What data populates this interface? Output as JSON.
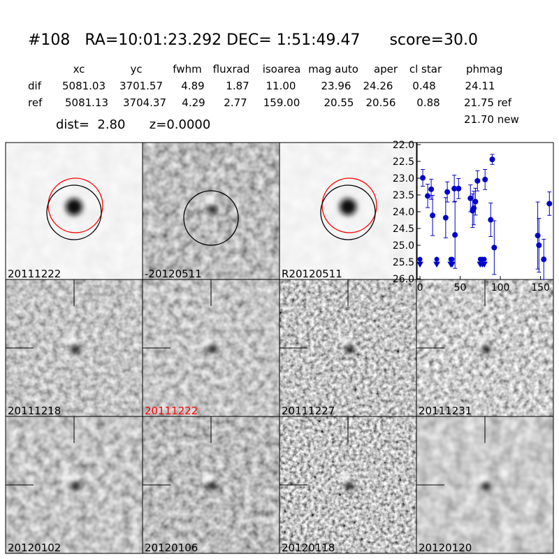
{
  "header": {
    "title": "#108   RA=10:01:23.292 DEC= 1:51:49.47      score=30.0"
  },
  "table": {
    "columns": [
      "xc",
      "yc",
      "fwhm",
      "fluxrad",
      "isoarea",
      "mag auto",
      "aper",
      "cl star",
      "phmag"
    ],
    "rows": [
      {
        "label": "dif",
        "cells": [
          "5081.03",
          "3701.57",
          "4.89",
          "1.87",
          "11.00",
          "23.96",
          "24.26",
          "0.48",
          "24.11"
        ]
      },
      {
        "label": "ref",
        "cells": [
          "5081.13",
          "3704.37",
          "4.29",
          "2.77",
          "159.00",
          "20.55",
          "20.56",
          "0.88",
          "21.75 ref"
        ]
      }
    ],
    "extra": "21.70 new"
  },
  "dist": "dist=  2.80      z=0.0000",
  "stamps": [
    {
      "label": "20111222",
      "color": "#000000"
    },
    {
      "label": "-20120511",
      "color": "#000000"
    },
    {
      "label": "R20120511",
      "color": "#000000"
    },
    {
      "label": "20111218",
      "color": "#000000"
    },
    {
      "label": "20111222",
      "color": "#ff0000"
    },
    {
      "label": "20111227",
      "color": "#000000"
    },
    {
      "label": "20111231",
      "color": "#000000"
    },
    {
      "label": "20120102",
      "color": "#000000"
    },
    {
      "label": "20120106",
      "color": "#000000"
    },
    {
      "label": "20120118",
      "color": "#000000"
    },
    {
      "label": "20120120",
      "color": "#000000"
    }
  ],
  "chart_data": {
    "type": "scatter",
    "series": [
      {
        "marker": "circle",
        "color": "#0000cc",
        "x": [
          3.5,
          9.6,
          14,
          15.7,
          32,
          34,
          42.7,
          43.6,
          48,
          62.8,
          65.4,
          67,
          69,
          71.5,
          81,
          88,
          89.9,
          92.4,
          146.5,
          148,
          154,
          161
        ],
        "values": [
          22.99,
          23.53,
          23.33,
          24.11,
          24.18,
          23.41,
          23.31,
          24.69,
          23.31,
          23.6,
          23.97,
          23.89,
          23.7,
          23.08,
          23.04,
          24.24,
          22.44,
          25.07,
          24.71,
          25.0,
          25.42,
          23.76
        ],
        "errors": [
          0.25,
          0.35,
          0.3,
          0.6,
          0.6,
          0.3,
          0.4,
          1.0,
          0.3,
          0.4,
          0.5,
          0.5,
          0.4,
          0.3,
          0.3,
          0.5,
          0.15,
          0.8,
          1.0,
          0.8,
          0.6,
          0.35
        ]
      },
      {
        "marker": "triangle",
        "color": "#0000cc",
        "x": [
          0,
          20.9,
          38.4,
          40,
          75,
          77.6,
          80
        ],
        "values": [
          25.5,
          25.5,
          25.5,
          25.5,
          25.5,
          25.5,
          25.5
        ]
      }
    ],
    "xlim": [
      -3.5,
      166
    ],
    "xticks": [
      0,
      50,
      100,
      150
    ],
    "ylim": [
      26,
      22
    ],
    "yticks": [
      {
        "value": 22,
        "label": "22.0"
      },
      {
        "value": 22.5,
        "label": "22.5"
      },
      {
        "value": 23,
        "label": "23.0"
      },
      {
        "value": 23.5,
        "label": "23.5"
      },
      {
        "value": 24,
        "label": "24.0"
      },
      {
        "value": 24.5,
        "label": "24.5"
      },
      {
        "value": 25,
        "label": "25.0"
      },
      {
        "value": 25.5,
        "label": "25.5"
      },
      {
        "value": 26,
        "label": "26.0"
      }
    ]
  }
}
